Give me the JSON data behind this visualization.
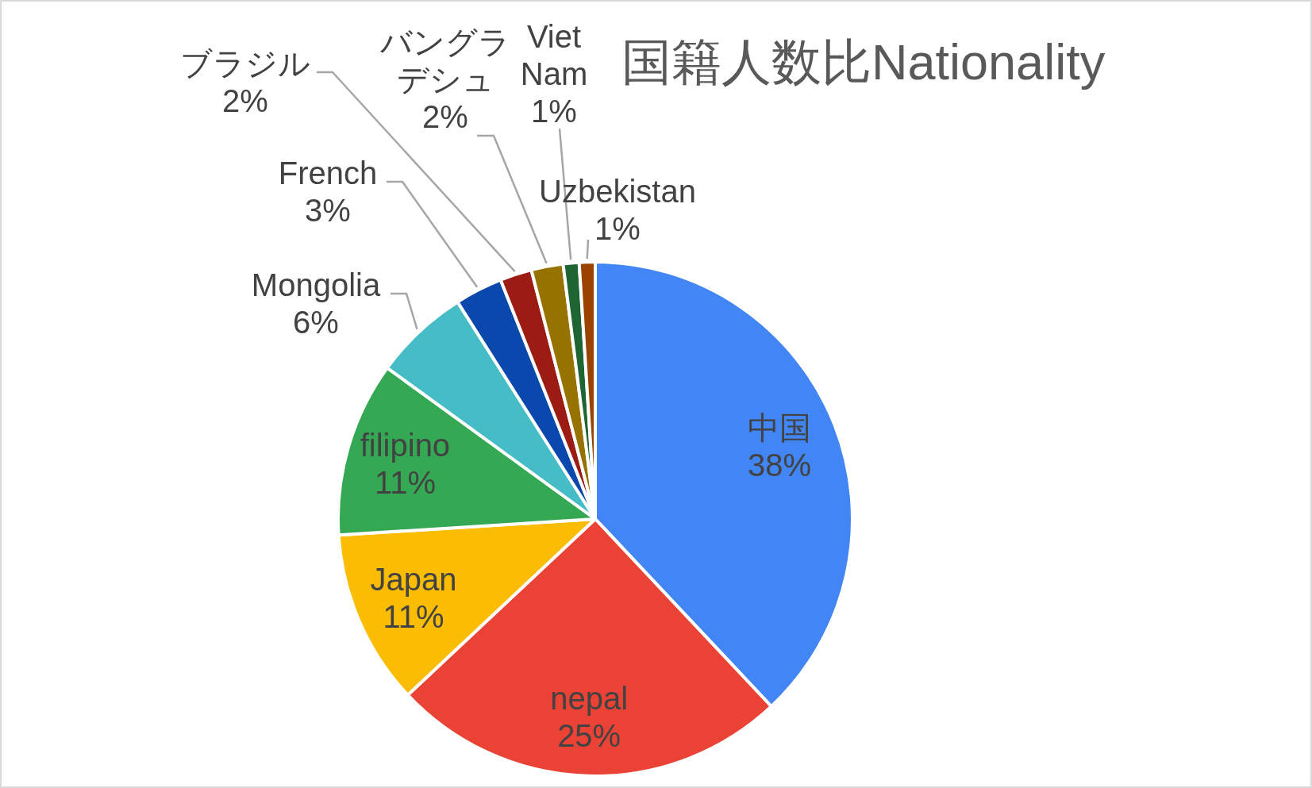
{
  "chart_data": {
    "type": "pie",
    "title": "国籍人数比Nationality",
    "categories": [
      "中国",
      "nepal",
      "Japan",
      "filipino",
      "Mongolia",
      "French",
      "ブラジル",
      "バングラデシュ",
      "Viet Nam",
      "Uzbekistan"
    ],
    "values": [
      38,
      25,
      11,
      11,
      6,
      3,
      2,
      2,
      1,
      1
    ],
    "value_labels": [
      "38%",
      "25%",
      "11%",
      "11%",
      "6%",
      "3%",
      "2%",
      "2%",
      "1%",
      "1%"
    ],
    "colors": [
      "#4285f4",
      "#ea4335",
      "#fbbc04",
      "#34a853",
      "#46bdc6",
      "#0b48ae",
      "#9c1b12",
      "#967200",
      "#1e6533",
      "#9a4200"
    ]
  }
}
